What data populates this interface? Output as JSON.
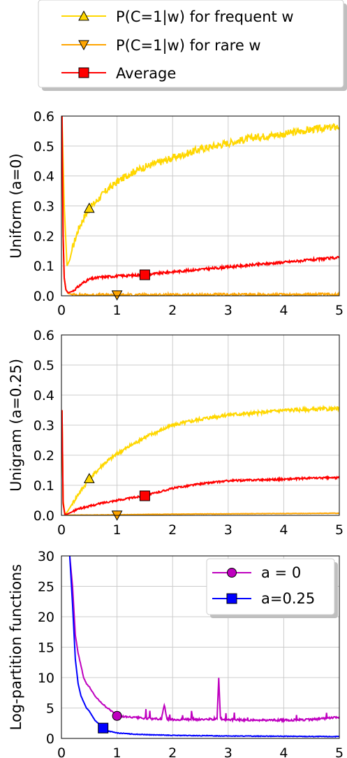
{
  "chart_data": [
    {
      "type": "line",
      "ylabel": "Uniform (a=0)",
      "xlim": [
        0,
        5
      ],
      "ylim": [
        0,
        0.6
      ],
      "x_ticks": [
        "0",
        "1",
        "2",
        "3",
        "4",
        "5"
      ],
      "y_ticks": [
        "0.0",
        "0.1",
        "0.2",
        "0.3",
        "0.4",
        "0.5",
        "0.6"
      ],
      "grid": true,
      "legend": "top (shared, outside plot)",
      "series": [
        {
          "name": "P(C=1|w) for frequent w",
          "color": "#FFD700",
          "marker": "triangle-up",
          "marker_at": [
            0.5,
            0.29
          ],
          "x": [
            0.01,
            0.05,
            0.1,
            0.15,
            0.2,
            0.3,
            0.4,
            0.5,
            0.6,
            0.8,
            1.0,
            1.25,
            1.5,
            2.0,
            2.5,
            3.0,
            3.5,
            4.0,
            4.5,
            5.0
          ],
          "y": [
            0.6,
            0.3,
            0.1,
            0.12,
            0.16,
            0.22,
            0.26,
            0.29,
            0.31,
            0.35,
            0.38,
            0.41,
            0.43,
            0.46,
            0.49,
            0.51,
            0.53,
            0.54,
            0.555,
            0.565
          ]
        },
        {
          "name": "P(C=1|w) for rare w",
          "color": "#FFA500",
          "marker": "triangle-down",
          "marker_at": [
            1.0,
            0.005
          ],
          "x": [
            0.01,
            0.03,
            0.05,
            0.08,
            0.12,
            0.2,
            0.5,
            1.0,
            2.0,
            3.0,
            4.0,
            5.0
          ],
          "y": [
            0.6,
            0.2,
            0.06,
            0.02,
            0.008,
            0.004,
            0.003,
            0.003,
            0.003,
            0.004,
            0.004,
            0.005
          ]
        },
        {
          "name": "Average",
          "color": "#FF0000",
          "marker": "square",
          "marker_at": [
            1.5,
            0.07
          ],
          "x": [
            0.01,
            0.03,
            0.05,
            0.08,
            0.12,
            0.2,
            0.3,
            0.4,
            0.5,
            0.7,
            1.0,
            1.5,
            2.0,
            2.5,
            3.0,
            3.5,
            4.0,
            4.5,
            5.0
          ],
          "y": [
            0.6,
            0.2,
            0.06,
            0.02,
            0.01,
            0.015,
            0.03,
            0.045,
            0.055,
            0.062,
            0.066,
            0.07,
            0.08,
            0.088,
            0.096,
            0.104,
            0.112,
            0.12,
            0.128
          ]
        }
      ]
    },
    {
      "type": "line",
      "ylabel": "Unigram (a=0.25)",
      "xlim": [
        0,
        5
      ],
      "ylim": [
        0,
        0.6
      ],
      "x_ticks": [
        "0",
        "1",
        "2",
        "3",
        "4",
        "5"
      ],
      "y_ticks": [
        "0.0",
        "0.1",
        "0.2",
        "0.3",
        "0.4",
        "0.5",
        "0.6"
      ],
      "grid": true,
      "series": [
        {
          "name": "P(C=1|w) for frequent w",
          "color": "#FFD700",
          "marker": "triangle-up",
          "marker_at": [
            0.5,
            0.12
          ],
          "x": [
            0.01,
            0.03,
            0.06,
            0.1,
            0.2,
            0.3,
            0.5,
            0.75,
            1.0,
            1.5,
            2.0,
            2.5,
            3.0,
            3.5,
            4.0,
            4.5,
            5.0
          ],
          "y": [
            0.35,
            0.05,
            0.005,
            0.01,
            0.04,
            0.07,
            0.12,
            0.17,
            0.205,
            0.26,
            0.3,
            0.32,
            0.335,
            0.34,
            0.35,
            0.352,
            0.355
          ]
        },
        {
          "name": "P(C=1|w) for rare w",
          "color": "#FFA500",
          "marker": "triangle-down",
          "marker_at": [
            1.0,
            0.003
          ],
          "x": [
            0.01,
            0.03,
            0.06,
            0.1,
            0.5,
            1.0,
            2.0,
            3.0,
            4.0,
            5.0
          ],
          "y": [
            0.35,
            0.04,
            0.004,
            0.001,
            0.001,
            0.002,
            0.004,
            0.005,
            0.006,
            0.007
          ]
        },
        {
          "name": "Average",
          "color": "#FF0000",
          "marker": "square",
          "marker_at": [
            1.5,
            0.065
          ],
          "x": [
            0.01,
            0.03,
            0.06,
            0.1,
            0.2,
            0.3,
            0.5,
            0.75,
            1.0,
            1.5,
            2.0,
            2.5,
            3.0,
            3.5,
            4.0,
            4.5,
            5.0
          ],
          "y": [
            0.35,
            0.04,
            0.004,
            0.004,
            0.012,
            0.022,
            0.03,
            0.042,
            0.05,
            0.065,
            0.09,
            0.105,
            0.115,
            0.118,
            0.12,
            0.124,
            0.125
          ]
        }
      ]
    },
    {
      "type": "line",
      "ylabel": "Log-partition functions",
      "xlim": [
        0,
        5
      ],
      "ylim": [
        0,
        30
      ],
      "x_ticks": [
        "0",
        "1",
        "2",
        "3",
        "4",
        "5"
      ],
      "y_ticks": [
        "0",
        "5",
        "10",
        "15",
        "20",
        "25",
        "30"
      ],
      "grid": true,
      "legend": "top-right",
      "series": [
        {
          "name": "a = 0",
          "color": "#BF00BF",
          "marker": "circle",
          "marker_at": [
            1.0,
            3.7
          ],
          "x": [
            0.15,
            0.2,
            0.25,
            0.3,
            0.35,
            0.4,
            0.45,
            0.5,
            0.6,
            0.7,
            0.8,
            0.9,
            1.0,
            1.2,
            1.5,
            1.8,
            1.85,
            1.9,
            2.0,
            2.5,
            2.8,
            2.83,
            2.86,
            2.9,
            3.0,
            3.5,
            4.0,
            4.5,
            5.0
          ],
          "y": [
            30,
            25,
            17,
            14,
            12,
            10,
            9,
            8.5,
            7,
            6,
            5.2,
            4.5,
            3.7,
            3.5,
            3.3,
            3.2,
            5.5,
            3.2,
            3.1,
            3.1,
            3.2,
            10,
            3.3,
            3.1,
            3.1,
            3.0,
            3.0,
            3.1,
            3.5
          ]
        },
        {
          "name": "a=0.25",
          "color": "#0000FF",
          "marker": "square",
          "marker_at": [
            0.75,
            1.7
          ],
          "x": [
            0.15,
            0.2,
            0.25,
            0.3,
            0.35,
            0.4,
            0.45,
            0.5,
            0.6,
            0.7,
            0.75,
            0.85,
            1.0,
            1.3,
            1.6,
            2.0,
            2.5,
            3.0,
            4.0,
            5.0
          ],
          "y": [
            30,
            22,
            13,
            9,
            7,
            6,
            5,
            4.5,
            3,
            2.2,
            1.7,
            1.2,
            0.9,
            0.7,
            0.6,
            0.5,
            0.45,
            0.4,
            0.35,
            0.3
          ]
        }
      ]
    }
  ]
}
